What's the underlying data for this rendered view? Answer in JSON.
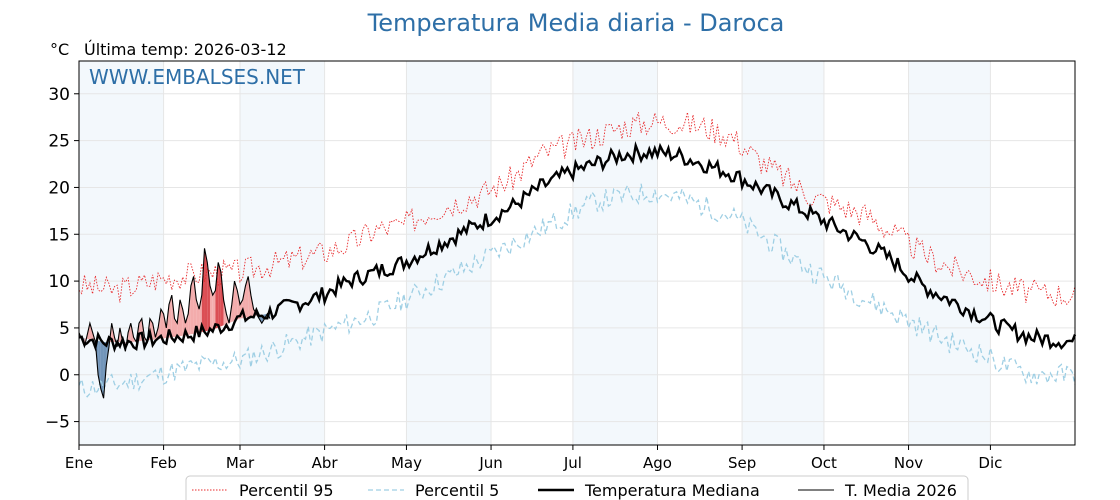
{
  "chart_data": {
    "type": "line",
    "title": "Temperatura Media diaria - Daroca",
    "subtitle": "Última temp: 2026-03-12",
    "unit_label": "°C",
    "watermark": "WWW.EMBALSES.NET",
    "ylim": [
      -7.5,
      33.5
    ],
    "yticks": [
      -5,
      0,
      5,
      10,
      15,
      20,
      25,
      30
    ],
    "ytick_labels": [
      "−5",
      "0",
      "5",
      "10",
      "15",
      "20",
      "25",
      "30"
    ],
    "xlim": [
      1,
      366
    ],
    "month_ticks": [
      {
        "label": "Ene",
        "day": 1
      },
      {
        "label": "Feb",
        "day": 32
      },
      {
        "label": "Mar",
        "day": 60
      },
      {
        "label": "Abr",
        "day": 91
      },
      {
        "label": "May",
        "day": 121
      },
      {
        "label": "Jun",
        "day": 152
      },
      {
        "label": "Jul",
        "day": 182
      },
      {
        "label": "Ago",
        "day": 213
      },
      {
        "label": "Sep",
        "day": 244
      },
      {
        "label": "Oct",
        "day": 274
      },
      {
        "label": "Nov",
        "day": 305
      },
      {
        "label": "Dic",
        "day": 335
      }
    ],
    "shaded_month_bands": [
      [
        1,
        32
      ],
      [
        60,
        91
      ],
      [
        121,
        152
      ],
      [
        182,
        213
      ],
      [
        244,
        274
      ],
      [
        305,
        335
      ]
    ],
    "grid": true,
    "legend_position": "bottom",
    "colors": {
      "title": "#2e6fa7",
      "p95": "#e8292b",
      "p5": "#9fcfe4",
      "median": "#000000",
      "current": "#000000",
      "above_fill": "#f2a8a8",
      "above_strong": "#d9444b",
      "below_fill": "#6a8fb5",
      "band": "#f3f8fc"
    },
    "series": [
      {
        "name": "Percentil 95",
        "style": "dotted",
        "points": [
          [
            1,
            9.5
          ],
          [
            15,
            9.0
          ],
          [
            30,
            10.2
          ],
          [
            45,
            10.8
          ],
          [
            60,
            11.0
          ],
          [
            75,
            12.0
          ],
          [
            90,
            13.0
          ],
          [
            100,
            14.0
          ],
          [
            110,
            15.5
          ],
          [
            120,
            16.0
          ],
          [
            130,
            17.5
          ],
          [
            140,
            18.5
          ],
          [
            150,
            19.5
          ],
          [
            160,
            21.0
          ],
          [
            170,
            23.5
          ],
          [
            180,
            24.5
          ],
          [
            190,
            25.5
          ],
          [
            200,
            26.5
          ],
          [
            210,
            27.0
          ],
          [
            220,
            27.0
          ],
          [
            230,
            26.5
          ],
          [
            240,
            25.5
          ],
          [
            250,
            23.0
          ],
          [
            260,
            21.0
          ],
          [
            270,
            19.0
          ],
          [
            280,
            18.0
          ],
          [
            290,
            17.0
          ],
          [
            300,
            15.0
          ],
          [
            310,
            13.0
          ],
          [
            320,
            11.5
          ],
          [
            330,
            10.5
          ],
          [
            340,
            9.5
          ],
          [
            350,
            8.8
          ],
          [
            366,
            8.5
          ]
        ]
      },
      {
        "name": "Percentil 5",
        "style": "dashed",
        "points": [
          [
            1,
            -1.5
          ],
          [
            15,
            -1.0
          ],
          [
            30,
            0.0
          ],
          [
            45,
            1.0
          ],
          [
            60,
            1.5
          ],
          [
            75,
            3.0
          ],
          [
            90,
            4.5
          ],
          [
            100,
            5.5
          ],
          [
            110,
            6.5
          ],
          [
            120,
            8.0
          ],
          [
            130,
            9.5
          ],
          [
            140,
            11.0
          ],
          [
            150,
            12.5
          ],
          [
            160,
            14.0
          ],
          [
            170,
            15.5
          ],
          [
            180,
            17.0
          ],
          [
            190,
            18.5
          ],
          [
            200,
            19.0
          ],
          [
            210,
            19.5
          ],
          [
            220,
            19.0
          ],
          [
            230,
            18.0
          ],
          [
            240,
            17.0
          ],
          [
            250,
            15.0
          ],
          [
            260,
            13.0
          ],
          [
            270,
            11.0
          ],
          [
            280,
            9.5
          ],
          [
            290,
            8.0
          ],
          [
            300,
            6.5
          ],
          [
            310,
            5.0
          ],
          [
            320,
            3.5
          ],
          [
            330,
            2.5
          ],
          [
            340,
            1.0
          ],
          [
            350,
            0.0
          ],
          [
            366,
            0.0
          ]
        ]
      },
      {
        "name": "Temperatura Mediana",
        "style": "solid-thick",
        "points": [
          [
            1,
            4.0
          ],
          [
            10,
            3.5
          ],
          [
            20,
            3.5
          ],
          [
            30,
            3.8
          ],
          [
            40,
            4.2
          ],
          [
            50,
            4.8
          ],
          [
            60,
            6.0
          ],
          [
            70,
            6.5
          ],
          [
            80,
            7.5
          ],
          [
            90,
            8.5
          ],
          [
            100,
            10.0
          ],
          [
            110,
            11.0
          ],
          [
            120,
            12.0
          ],
          [
            130,
            13.5
          ],
          [
            140,
            15.0
          ],
          [
            150,
            16.5
          ],
          [
            160,
            18.0
          ],
          [
            170,
            20.0
          ],
          [
            180,
            21.5
          ],
          [
            190,
            22.5
          ],
          [
            200,
            23.5
          ],
          [
            210,
            23.8
          ],
          [
            220,
            23.5
          ],
          [
            230,
            22.5
          ],
          [
            240,
            21.5
          ],
          [
            250,
            20.0
          ],
          [
            260,
            18.5
          ],
          [
            270,
            17.0
          ],
          [
            280,
            15.5
          ],
          [
            290,
            14.0
          ],
          [
            300,
            12.0
          ],
          [
            310,
            9.5
          ],
          [
            320,
            8.0
          ],
          [
            330,
            6.5
          ],
          [
            340,
            5.0
          ],
          [
            350,
            4.0
          ],
          [
            366,
            3.5
          ]
        ]
      },
      {
        "name": "T. Media 2026",
        "style": "solid-thin",
        "points": [
          [
            1,
            4.5
          ],
          [
            3,
            3.0
          ],
          [
            5,
            5.5
          ],
          [
            7,
            3.5
          ],
          [
            8,
            0.0
          ],
          [
            9,
            -1.5
          ],
          [
            10,
            -2.5
          ],
          [
            11,
            1.0
          ],
          [
            12,
            3.0
          ],
          [
            13,
            5.5
          ],
          [
            14,
            4.0
          ],
          [
            15,
            3.0
          ],
          [
            16,
            5.0
          ],
          [
            17,
            3.5
          ],
          [
            18,
            2.5
          ],
          [
            19,
            4.5
          ],
          [
            20,
            5.5
          ],
          [
            21,
            4.0
          ],
          [
            22,
            3.5
          ],
          [
            23,
            5.5
          ],
          [
            24,
            6.0
          ],
          [
            25,
            4.0
          ],
          [
            26,
            3.5
          ],
          [
            27,
            6.0
          ],
          [
            28,
            5.5
          ],
          [
            29,
            4.0
          ],
          [
            30,
            5.0
          ],
          [
            31,
            7.0
          ],
          [
            32,
            6.5
          ],
          [
            33,
            5.0
          ],
          [
            34,
            7.5
          ],
          [
            35,
            8.5
          ],
          [
            36,
            6.0
          ],
          [
            37,
            5.5
          ],
          [
            38,
            8.0
          ],
          [
            39,
            7.0
          ],
          [
            40,
            5.5
          ],
          [
            41,
            6.5
          ],
          [
            42,
            9.5
          ],
          [
            43,
            10.5
          ],
          [
            44,
            8.0
          ],
          [
            45,
            7.0
          ],
          [
            46,
            8.5
          ],
          [
            47,
            13.5
          ],
          [
            48,
            12.0
          ],
          [
            49,
            9.5
          ],
          [
            50,
            8.5
          ],
          [
            51,
            9.0
          ],
          [
            52,
            12.0
          ],
          [
            53,
            11.0
          ],
          [
            54,
            8.0
          ],
          [
            55,
            6.5
          ],
          [
            56,
            5.5
          ],
          [
            57,
            7.5
          ],
          [
            58,
            10.0
          ],
          [
            59,
            9.0
          ],
          [
            60,
            7.5
          ],
          [
            61,
            8.0
          ],
          [
            62,
            9.5
          ],
          [
            63,
            10.5
          ],
          [
            64,
            8.5
          ],
          [
            65,
            7.0
          ],
          [
            66,
            6.5
          ],
          [
            67,
            6.0
          ],
          [
            68,
            5.5
          ],
          [
            69,
            6.0
          ],
          [
            70,
            6.5
          ],
          [
            71,
            6.0
          ]
        ]
      }
    ]
  }
}
